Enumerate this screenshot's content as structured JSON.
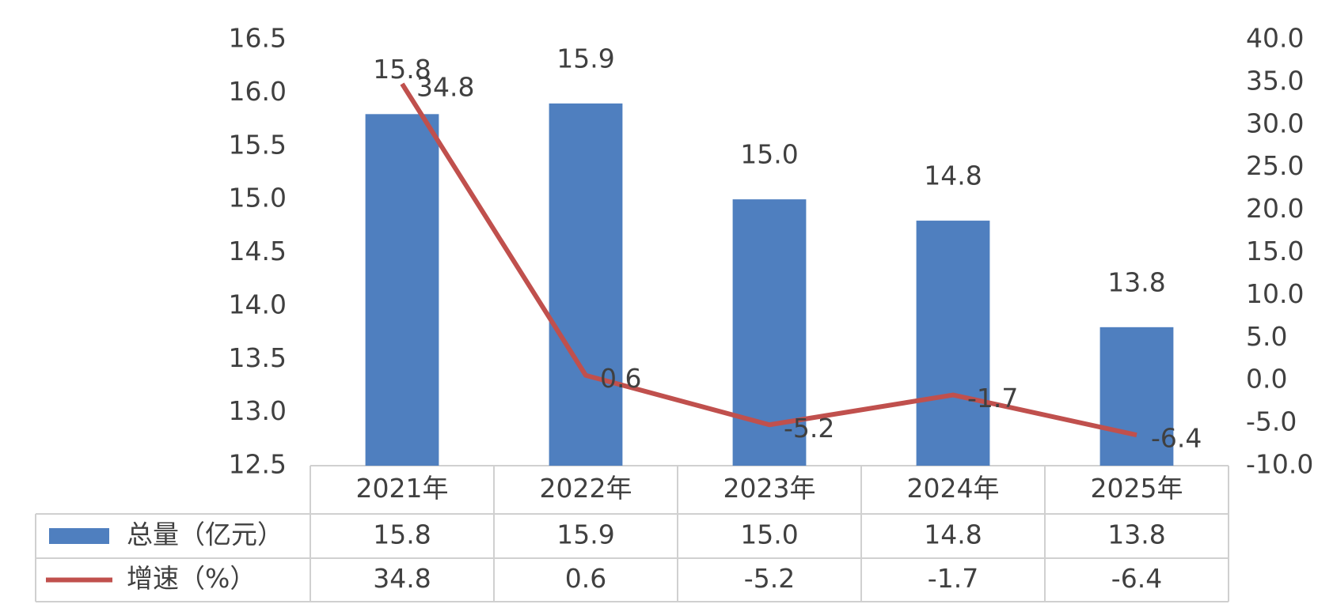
{
  "chart_data": {
    "type": "bar-line",
    "categories": [
      "2021年",
      "2022年",
      "2023年",
      "2024年",
      "2025年"
    ],
    "series": [
      {
        "name": "总量（亿元）",
        "type": "bar",
        "color": "#4f7fbf",
        "values": [
          15.8,
          15.9,
          15,
          14.8,
          13.8
        ],
        "value_labels": [
          "15.8",
          "15.9",
          "15.0",
          "14.8",
          "13.8"
        ]
      },
      {
        "name": "增速（%）",
        "type": "line",
        "axis": "y2",
        "color": "#c0504d",
        "values": [
          34.8,
          0.6,
          -5.2,
          -1.7,
          -6.4
        ]
      }
    ],
    "ylim": [
      12.5,
      16.5
    ],
    "yticks": [
      12.5,
      {
        "value": 13,
        "label": "13.0"
      },
      13.5,
      {
        "value": 14,
        "label": "14.0"
      },
      14.5,
      {
        "value": 15,
        "label": "15.0"
      },
      15.5,
      {
        "value": 16,
        "label": "16.0"
      },
      16.5
    ],
    "y2lim": [
      -10,
      40
    ],
    "y2ticks": [
      {
        "value": -10,
        "label": "-10.0"
      },
      {
        "value": -5,
        "label": "-5.0"
      },
      {
        "value": 0,
        "label": "0.0"
      },
      {
        "value": 5,
        "label": "5.0"
      },
      {
        "value": 10,
        "label": "10.0"
      },
      {
        "value": 15,
        "label": "15.0"
      },
      {
        "value": 20,
        "label": "20.0"
      },
      {
        "value": 25,
        "label": "25.0"
      },
      {
        "value": 30,
        "label": "30.0"
      },
      {
        "value": 35,
        "label": "35.0"
      },
      {
        "value": 40,
        "label": "40.0"
      }
    ],
    "data_table": true
  }
}
